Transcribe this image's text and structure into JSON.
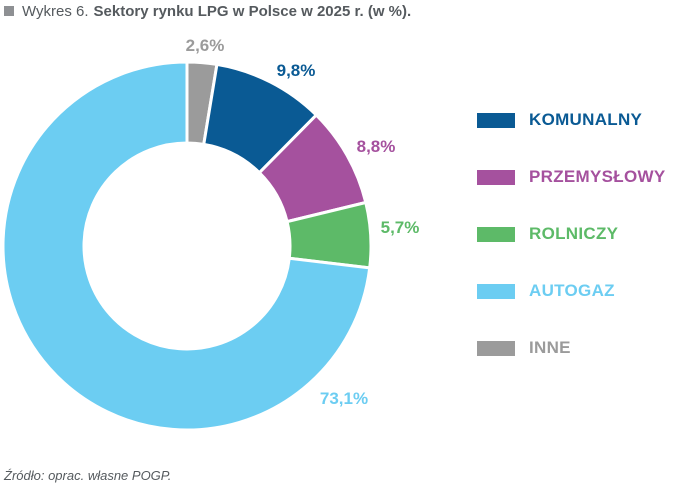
{
  "header": {
    "title_prefix": "Wykres 6.",
    "title_main": "Sektory rynku LPG w Polsce w 2025 r. (w %)."
  },
  "source": "Źródło: oprac. własne POGP.",
  "colors": {
    "komunalny": "#0a5a94",
    "przemyslowy": "#a5519e",
    "rolniczy": "#5dba68",
    "autogaz": "#6ccdf2",
    "inne": "#9b9b9b"
  },
  "chart_data": {
    "type": "pie",
    "subtype": "donut",
    "title": "Sektory rynku LPG w Polsce w 2025 r. (w %).",
    "slices": [
      {
        "name": "INNE",
        "value": 2.6,
        "label": "2,6%",
        "color": "#9b9b9b"
      },
      {
        "name": "KOMUNALNY",
        "value": 9.8,
        "label": "9,8%",
        "color": "#0a5a94"
      },
      {
        "name": "PRZEMYSŁOWY",
        "value": 8.8,
        "label": "8,8%",
        "color": "#a5519e"
      },
      {
        "name": "ROLNICZY",
        "value": 5.7,
        "label": "5,7%",
        "color": "#5dba68"
      },
      {
        "name": "AUTOGAZ",
        "value": 73.1,
        "label": "73,1%",
        "color": "#6ccdf2"
      }
    ],
    "legend": {
      "position": "right",
      "items": [
        {
          "label": "KOMUNALNY",
          "color": "#0a5a94"
        },
        {
          "label": "PRZEMYSŁOWY",
          "color": "#a5519e"
        },
        {
          "label": "ROLNICZY",
          "color": "#5dba68"
        },
        {
          "label": "AUTOGAZ",
          "color": "#6ccdf2"
        },
        {
          "label": "INNE",
          "color": "#9b9b9b"
        }
      ]
    }
  }
}
